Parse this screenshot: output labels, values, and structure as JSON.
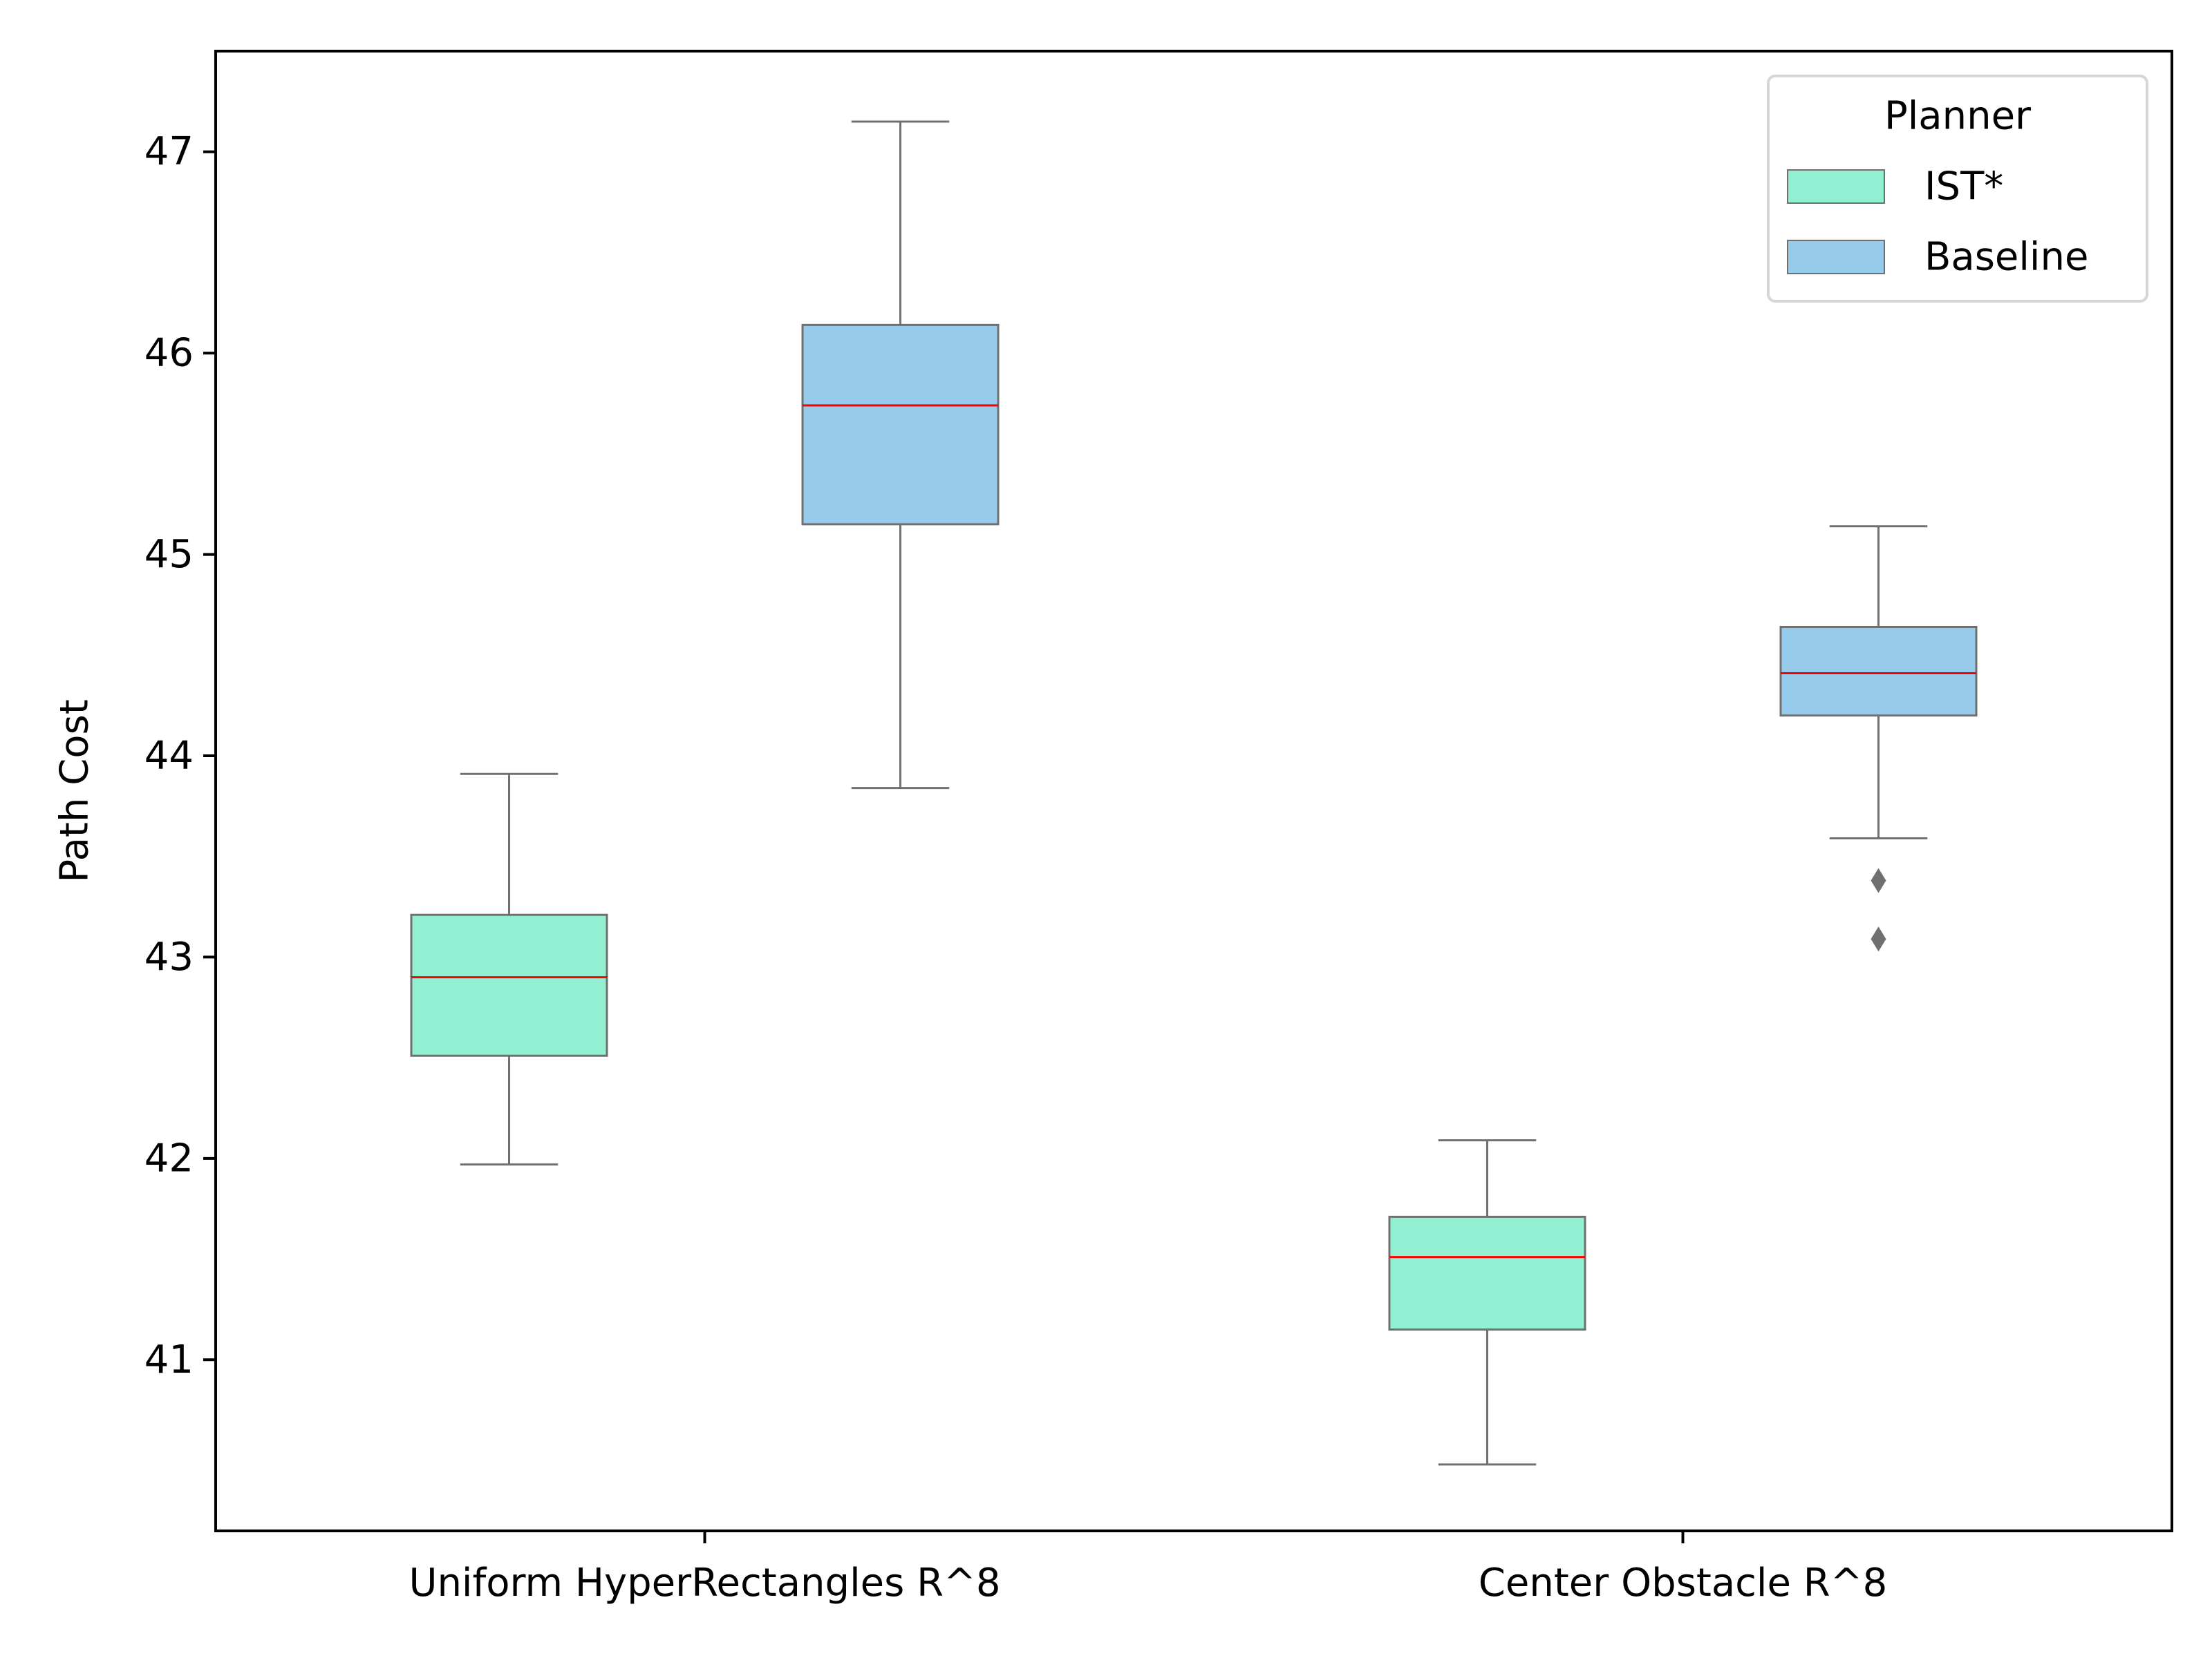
{
  "chart_data": {
    "type": "box",
    "ylabel": "Path Cost",
    "xlabel": "",
    "categories": [
      "Uniform HyperRectangles R^8",
      "Center Obstacle R^8"
    ],
    "ylim": [
      40.15,
      47.5
    ],
    "yticks": [
      41,
      42,
      43,
      44,
      45,
      46,
      47
    ],
    "legend": {
      "title": "Planner",
      "position": "top-right"
    },
    "colors": {
      "median": "#ff0000",
      "edge": "#707070",
      "outlier": "#707070",
      "axes": "#000000"
    },
    "series": [
      {
        "name": "IST*",
        "color": "#92f0d2",
        "boxes": [
          {
            "whisker_low": 41.97,
            "q1": 42.51,
            "median": 42.9,
            "q3": 43.21,
            "whisker_high": 43.91,
            "outliers": []
          },
          {
            "whisker_low": 40.48,
            "q1": 41.15,
            "median": 41.51,
            "q3": 41.71,
            "whisker_high": 42.09,
            "outliers": []
          }
        ]
      },
      {
        "name": "Baseline",
        "color": "#96cbec",
        "boxes": [
          {
            "whisker_low": 43.84,
            "q1": 45.15,
            "median": 45.74,
            "q3": 46.14,
            "whisker_high": 47.15,
            "outliers": []
          },
          {
            "whisker_low": 43.59,
            "q1": 44.2,
            "median": 44.41,
            "q3": 44.64,
            "whisker_high": 45.14,
            "outliers": [
              43.38,
              43.09
            ]
          }
        ]
      }
    ]
  }
}
